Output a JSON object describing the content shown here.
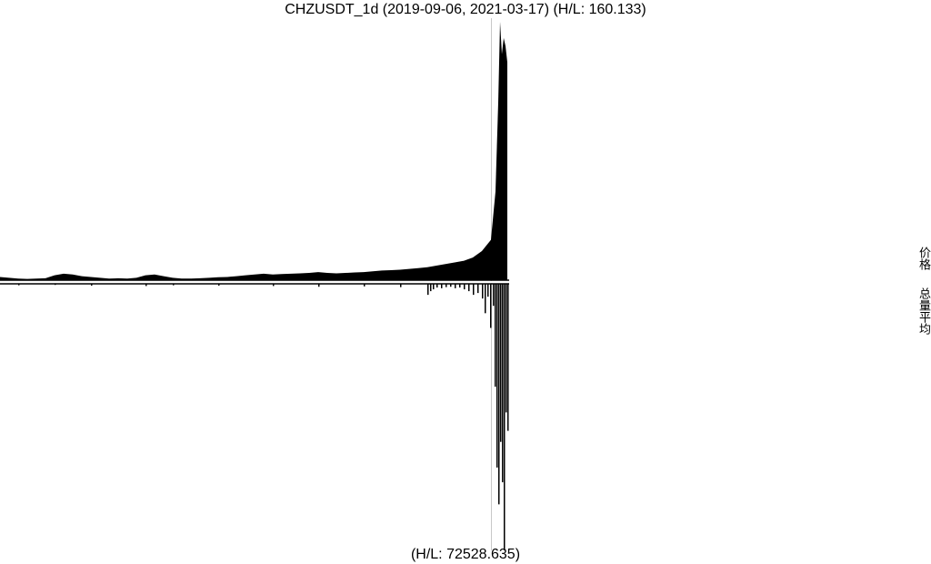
{
  "title": "CHZUSDT_1d (2019-09-06, 2021-03-17) (H/L: 160.133)",
  "footer": "(H/L: 72528.635)",
  "side_labels": {
    "price": "价格",
    "volume": "总量平均"
  },
  "chart_data": [
    {
      "type": "area",
      "name": "price",
      "symbol": "CHZUSDT_1d",
      "x_range": [
        "2019-09-06",
        "2021-03-17"
      ],
      "hl_ratio": 160.133,
      "grid": false,
      "x": [
        0,
        10,
        20,
        30,
        40,
        50,
        60,
        70,
        80,
        90,
        100,
        110,
        120,
        130,
        140,
        150,
        160,
        170,
        180,
        190,
        200,
        210,
        220,
        230,
        240,
        250,
        260,
        270,
        280,
        290,
        300,
        310,
        320,
        330,
        340,
        350,
        360,
        370,
        380,
        390,
        400,
        410,
        420,
        430,
        440,
        450,
        460,
        470,
        480,
        490,
        500,
        510,
        520,
        530,
        540,
        545,
        548,
        550,
        552,
        554,
        556,
        558
      ],
      "values": [
        2,
        1.5,
        1,
        0.8,
        1,
        1.2,
        3,
        4,
        3.5,
        2.5,
        2,
        1.5,
        1,
        1.2,
        1,
        1.5,
        3,
        3.5,
        2.5,
        1.5,
        1,
        1,
        1.2,
        1.5,
        1.8,
        2,
        2.5,
        3,
        3.5,
        4,
        3.5,
        3.8,
        4,
        4.2,
        4.5,
        5,
        4.5,
        4.2,
        4.5,
        4.8,
        5,
        5.5,
        6,
        6.2,
        6.5,
        7,
        7.5,
        8,
        9,
        10,
        11,
        12,
        14,
        18,
        25,
        55,
        110,
        160,
        140,
        150,
        145,
        135
      ],
      "color": "#000000"
    },
    {
      "type": "bar",
      "name": "volume",
      "hl_ratio": 72528.635,
      "x": [
        20,
        60,
        100,
        160,
        190,
        240,
        300,
        350,
        400,
        440,
        470,
        473,
        476,
        480,
        485,
        490,
        495,
        500,
        505,
        510,
        515,
        520,
        525,
        530,
        533,
        536,
        539,
        542,
        544,
        546,
        548,
        550,
        552,
        554,
        556,
        558
      ],
      "values": [
        400,
        300,
        500,
        600,
        400,
        500,
        600,
        800,
        700,
        900,
        3000,
        2000,
        1500,
        1000,
        1200,
        900,
        800,
        1200,
        1000,
        1500,
        2000,
        3000,
        2500,
        4000,
        8000,
        3500,
        12000,
        6000,
        28000,
        50000,
        60000,
        43000,
        54000,
        72528,
        35000,
        40000
      ],
      "color": "#000000"
    }
  ]
}
